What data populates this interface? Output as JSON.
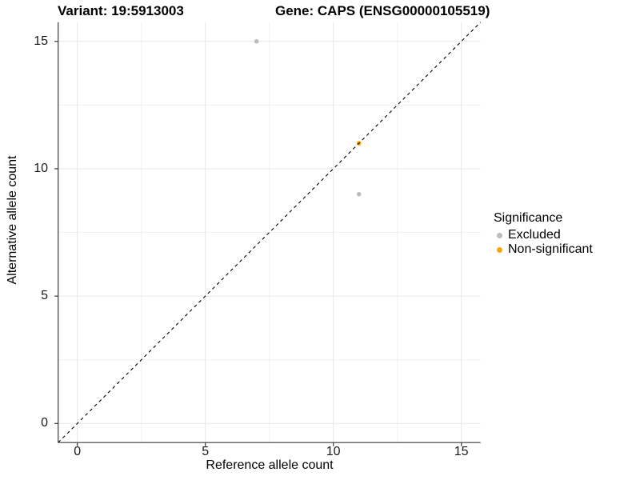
{
  "header": {
    "title_left": "Variant: 19:5913003",
    "title_right": "Gene: CAPS (ENSG00000105519)"
  },
  "chart_data": {
    "type": "scatter",
    "title": "Variant: 19:5913003   Gene: CAPS (ENSG00000105519)",
    "xlabel": "Reference allele count",
    "ylabel": "Alternative allele count",
    "xlim": [
      -0.75,
      15.75
    ],
    "ylim": [
      -0.75,
      15.75
    ],
    "x_ticks": [
      0,
      5,
      10,
      15
    ],
    "y_ticks": [
      0,
      5,
      10,
      15
    ],
    "minor_ticks": [
      2.5,
      7.5,
      12.5
    ],
    "grid": "major and minor gridlines on, white panel",
    "identity_line": {
      "style": "dashed",
      "color": "#000000",
      "from": -0.75,
      "to": 15.75
    },
    "series": [
      {
        "name": "Excluded",
        "color": "#bcbcbc",
        "points": [
          [
            7,
            15
          ],
          [
            11,
            9
          ]
        ]
      },
      {
        "name": "Non-significant",
        "color": "#ffa500",
        "points": [
          [
            11,
            11
          ]
        ]
      }
    ],
    "legend": {
      "title": "Significance",
      "position": "right"
    },
    "colors": {
      "grid_major": "#e8e8e8",
      "grid_minor": "#f1f1f1",
      "axis_line": "#3c3c3c",
      "tick_text": "#1a1a1a"
    }
  }
}
